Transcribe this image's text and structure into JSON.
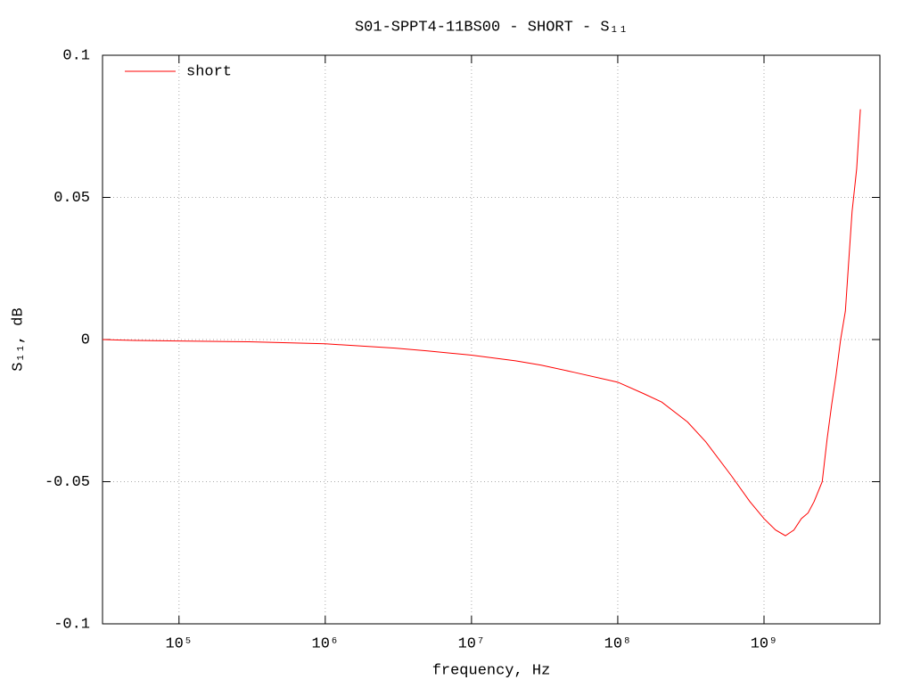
{
  "chart_data": {
    "type": "line",
    "title": "S01-SPPT4-11BS00 - SHORT - S₁₁",
    "x_label": "frequency, Hz",
    "y_label": "S₁₁, dB",
    "x_scale": "log",
    "grid": true,
    "legend": "top-left",
    "xlim": [
      30000,
      6200000000
    ],
    "ylim": [
      -0.1,
      0.1
    ],
    "xticks": [
      {
        "value": 100000,
        "label": "10⁵"
      },
      {
        "value": 1000000,
        "label": "10⁶"
      },
      {
        "value": 10000000,
        "label": "10⁷"
      },
      {
        "value": 100000000,
        "label": "10⁸"
      },
      {
        "value": 1000000000,
        "label": "10⁹"
      }
    ],
    "yticks": [
      -0.1,
      -0.05,
      0,
      0.05,
      0.1
    ],
    "x": [
      30000,
      50000,
      100000,
      300000,
      1000000,
      3000000,
      5000000,
      10000000,
      20000000,
      30000000,
      50000000,
      100000000,
      150000000,
      200000000,
      300000000,
      400000000,
      600000000,
      800000000,
      1000000000,
      1200000000,
      1400000000,
      1600000000,
      1800000000,
      2000000000,
      2200000000,
      2500000000,
      2700000000,
      2900000000,
      3100000000,
      3340000000,
      3600000000,
      3800000000,
      4000000000,
      4300000000,
      4560000000
    ],
    "series": [
      {
        "name": "short",
        "color": "#ff0000",
        "values": [
          0.0,
          -0.0003,
          -0.0005,
          -0.0008,
          -0.0015,
          -0.003,
          -0.004,
          -0.0055,
          -0.0075,
          -0.009,
          -0.0115,
          -0.015,
          -0.019,
          -0.022,
          -0.029,
          -0.036,
          -0.048,
          -0.057,
          -0.063,
          -0.067,
          -0.069,
          -0.067,
          -0.063,
          -0.061,
          -0.057,
          -0.05,
          -0.035,
          -0.023,
          -0.013,
          0.0,
          0.01,
          0.028,
          0.045,
          0.06,
          0.081
        ]
      }
    ]
  }
}
